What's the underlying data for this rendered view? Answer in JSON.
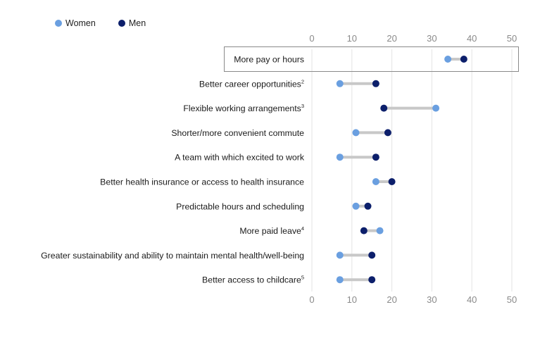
{
  "legend": {
    "women_label": "Women",
    "men_label": "Men"
  },
  "colors": {
    "women": "#6a9fe0",
    "men": "#0c1f6b",
    "connector": "#c8c8c8",
    "grid": "#e3e3e3",
    "tick": "#8a8a8a",
    "highlight_border": "#8a8a8a"
  },
  "chart_data": {
    "type": "dumbbell",
    "xlim": [
      0,
      50
    ],
    "ticks": [
      0,
      10,
      20,
      30,
      40,
      50
    ],
    "tick_labels": [
      "0",
      "10",
      "20",
      "30",
      "40",
      "50"
    ],
    "series": [
      {
        "name": "Women",
        "values": [
          34,
          7,
          31,
          11,
          7,
          16,
          11,
          17,
          7,
          7
        ]
      },
      {
        "name": "Men",
        "values": [
          38,
          16,
          18,
          19,
          16,
          20,
          14,
          13,
          15,
          15
        ]
      }
    ],
    "categories": [
      {
        "label": "More pay or hours",
        "sup": "",
        "highlight": true
      },
      {
        "label": "Better career opportunities",
        "sup": "2",
        "highlight": false
      },
      {
        "label": "Flexible working arrangements",
        "sup": "3",
        "highlight": false
      },
      {
        "label": "Shorter/more convenient commute",
        "sup": "",
        "highlight": false
      },
      {
        "label": "A team with which excited to work",
        "sup": "",
        "highlight": false
      },
      {
        "label": "Better health insurance or access to health insurance",
        "sup": "",
        "highlight": false
      },
      {
        "label": "Predictable hours and scheduling",
        "sup": "",
        "highlight": false
      },
      {
        "label": "More paid leave",
        "sup": "4",
        "highlight": false
      },
      {
        "label": "Greater sustainability and ability to maintain mental health/well-being",
        "sup": "",
        "highlight": false
      },
      {
        "label": "Better access to childcare",
        "sup": "5",
        "highlight": false
      }
    ]
  }
}
